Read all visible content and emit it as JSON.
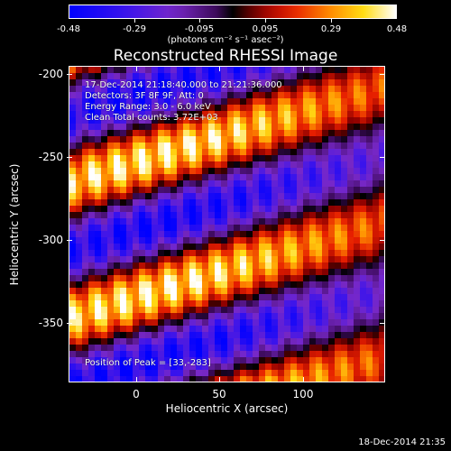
{
  "colorbar": {
    "tick_labels": [
      "-0.48",
      "-0.29",
      "-0.095",
      "0.095",
      "0.29",
      "0.48"
    ],
    "units_label": "(photons cm⁻² s⁻¹ asec⁻²)",
    "min": -0.48,
    "max": 0.48
  },
  "title": "Reconstructed RHESSI Image",
  "annotations": {
    "line1": "17-Dec-2014 21:18:40.000 to 21:21:36.000",
    "line2": "Detectors: 3F 8F 9F, Att: 0",
    "line3": "Energy Range: 3.0 - 6.0 keV",
    "line4": "Clean    Total counts: 3.72E+03",
    "peak": "Position of Peak = [33,-283]"
  },
  "axes": {
    "xlabel": "Heliocentric X (arcsec)",
    "ylabel": "Heliocentric Y (arcsec)",
    "x_ticks": [
      "0",
      "50",
      "100"
    ],
    "y_ticks": [
      "-200",
      "-250",
      "-300",
      "-350"
    ]
  },
  "timestamp": "18-Dec-2014 21:35"
}
